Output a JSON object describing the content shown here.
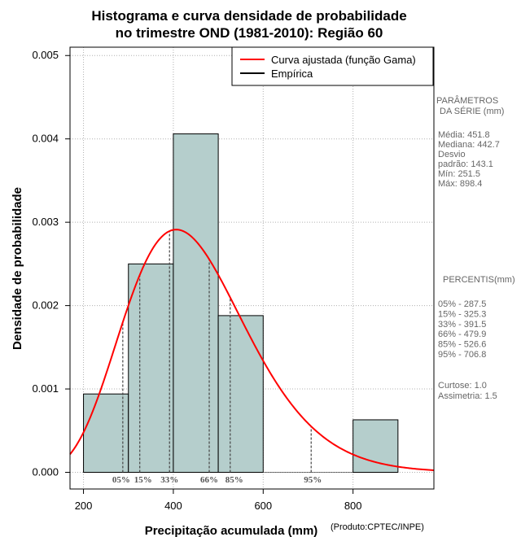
{
  "chart_data": {
    "type": "histogram",
    "title_lines": [
      "Histograma e curva densidade de probabilidade",
      "no trimestre OND (1981-2010): Região 60"
    ],
    "xlabel": "Precipitação acumulada (mm)",
    "ylabel": "Densidade de probabilidade",
    "credit": "(Produto:CPTEC/INPE)",
    "xlim": [
      170,
      980
    ],
    "ylim": [
      -0.0002,
      0.0051
    ],
    "x_ticks": [
      200,
      400,
      600,
      800
    ],
    "x_tick_labels": [
      "200",
      "400",
      "600",
      "800"
    ],
    "y_ticks": [
      0,
      0.001,
      0.002,
      0.003,
      0.004,
      0.005
    ],
    "y_tick_labels": [
      "0.000",
      "0.001",
      "0.002",
      "0.003",
      "0.004",
      "0.005"
    ],
    "grid": true,
    "bins": [
      {
        "x0": 200,
        "x1": 300,
        "density": 0.00094
      },
      {
        "x0": 300,
        "x1": 400,
        "density": 0.0025
      },
      {
        "x0": 400,
        "x1": 500,
        "density": 0.00406
      },
      {
        "x0": 500,
        "x1": 600,
        "density": 0.00188
      },
      {
        "x0": 600,
        "x1": 700,
        "density": 0
      },
      {
        "x0": 700,
        "x1": 800,
        "density": 0
      },
      {
        "x0": 800,
        "x1": 900,
        "density": 0.00063
      }
    ],
    "gamma_fit": {
      "name": "Curva ajustada (função Gama)",
      "mean": 451.8,
      "sd": 143.1,
      "color": "#ff0000"
    },
    "empirical": {
      "name": "Empírica",
      "color": "#000000"
    },
    "percentiles": [
      {
        "label": "05%",
        "value": 287.5
      },
      {
        "label": "15%",
        "value": 325.3
      },
      {
        "label": "33%",
        "value": 391.5
      },
      {
        "label": "66%",
        "value": 479.9
      },
      {
        "label": "85%",
        "value": 526.6
      },
      {
        "label": "95%",
        "value": 706.8
      }
    ],
    "legend_position": "top-right",
    "bar_color": "#b5cecc"
  },
  "side_panel": {
    "params_title_1": "PARÂMETROS",
    "params_title_2": "DA SÉRIE (mm)",
    "params": [
      "Média:  451.8",
      "Mediana:  442.7",
      "Desvio",
      "padrão:  143.1",
      "Mín:  251.5",
      "Máx:  898.4"
    ],
    "percentis_title": "PERCENTIS(mm)",
    "percentis": [
      "05% -   287.5",
      "15% -   325.3",
      "33% -   391.5",
      "66% -   479.9",
      "85% -   526.6",
      "95% -   706.8"
    ],
    "shape": [
      "Curtose:  1.0",
      "Assimetria:  1.5"
    ]
  }
}
